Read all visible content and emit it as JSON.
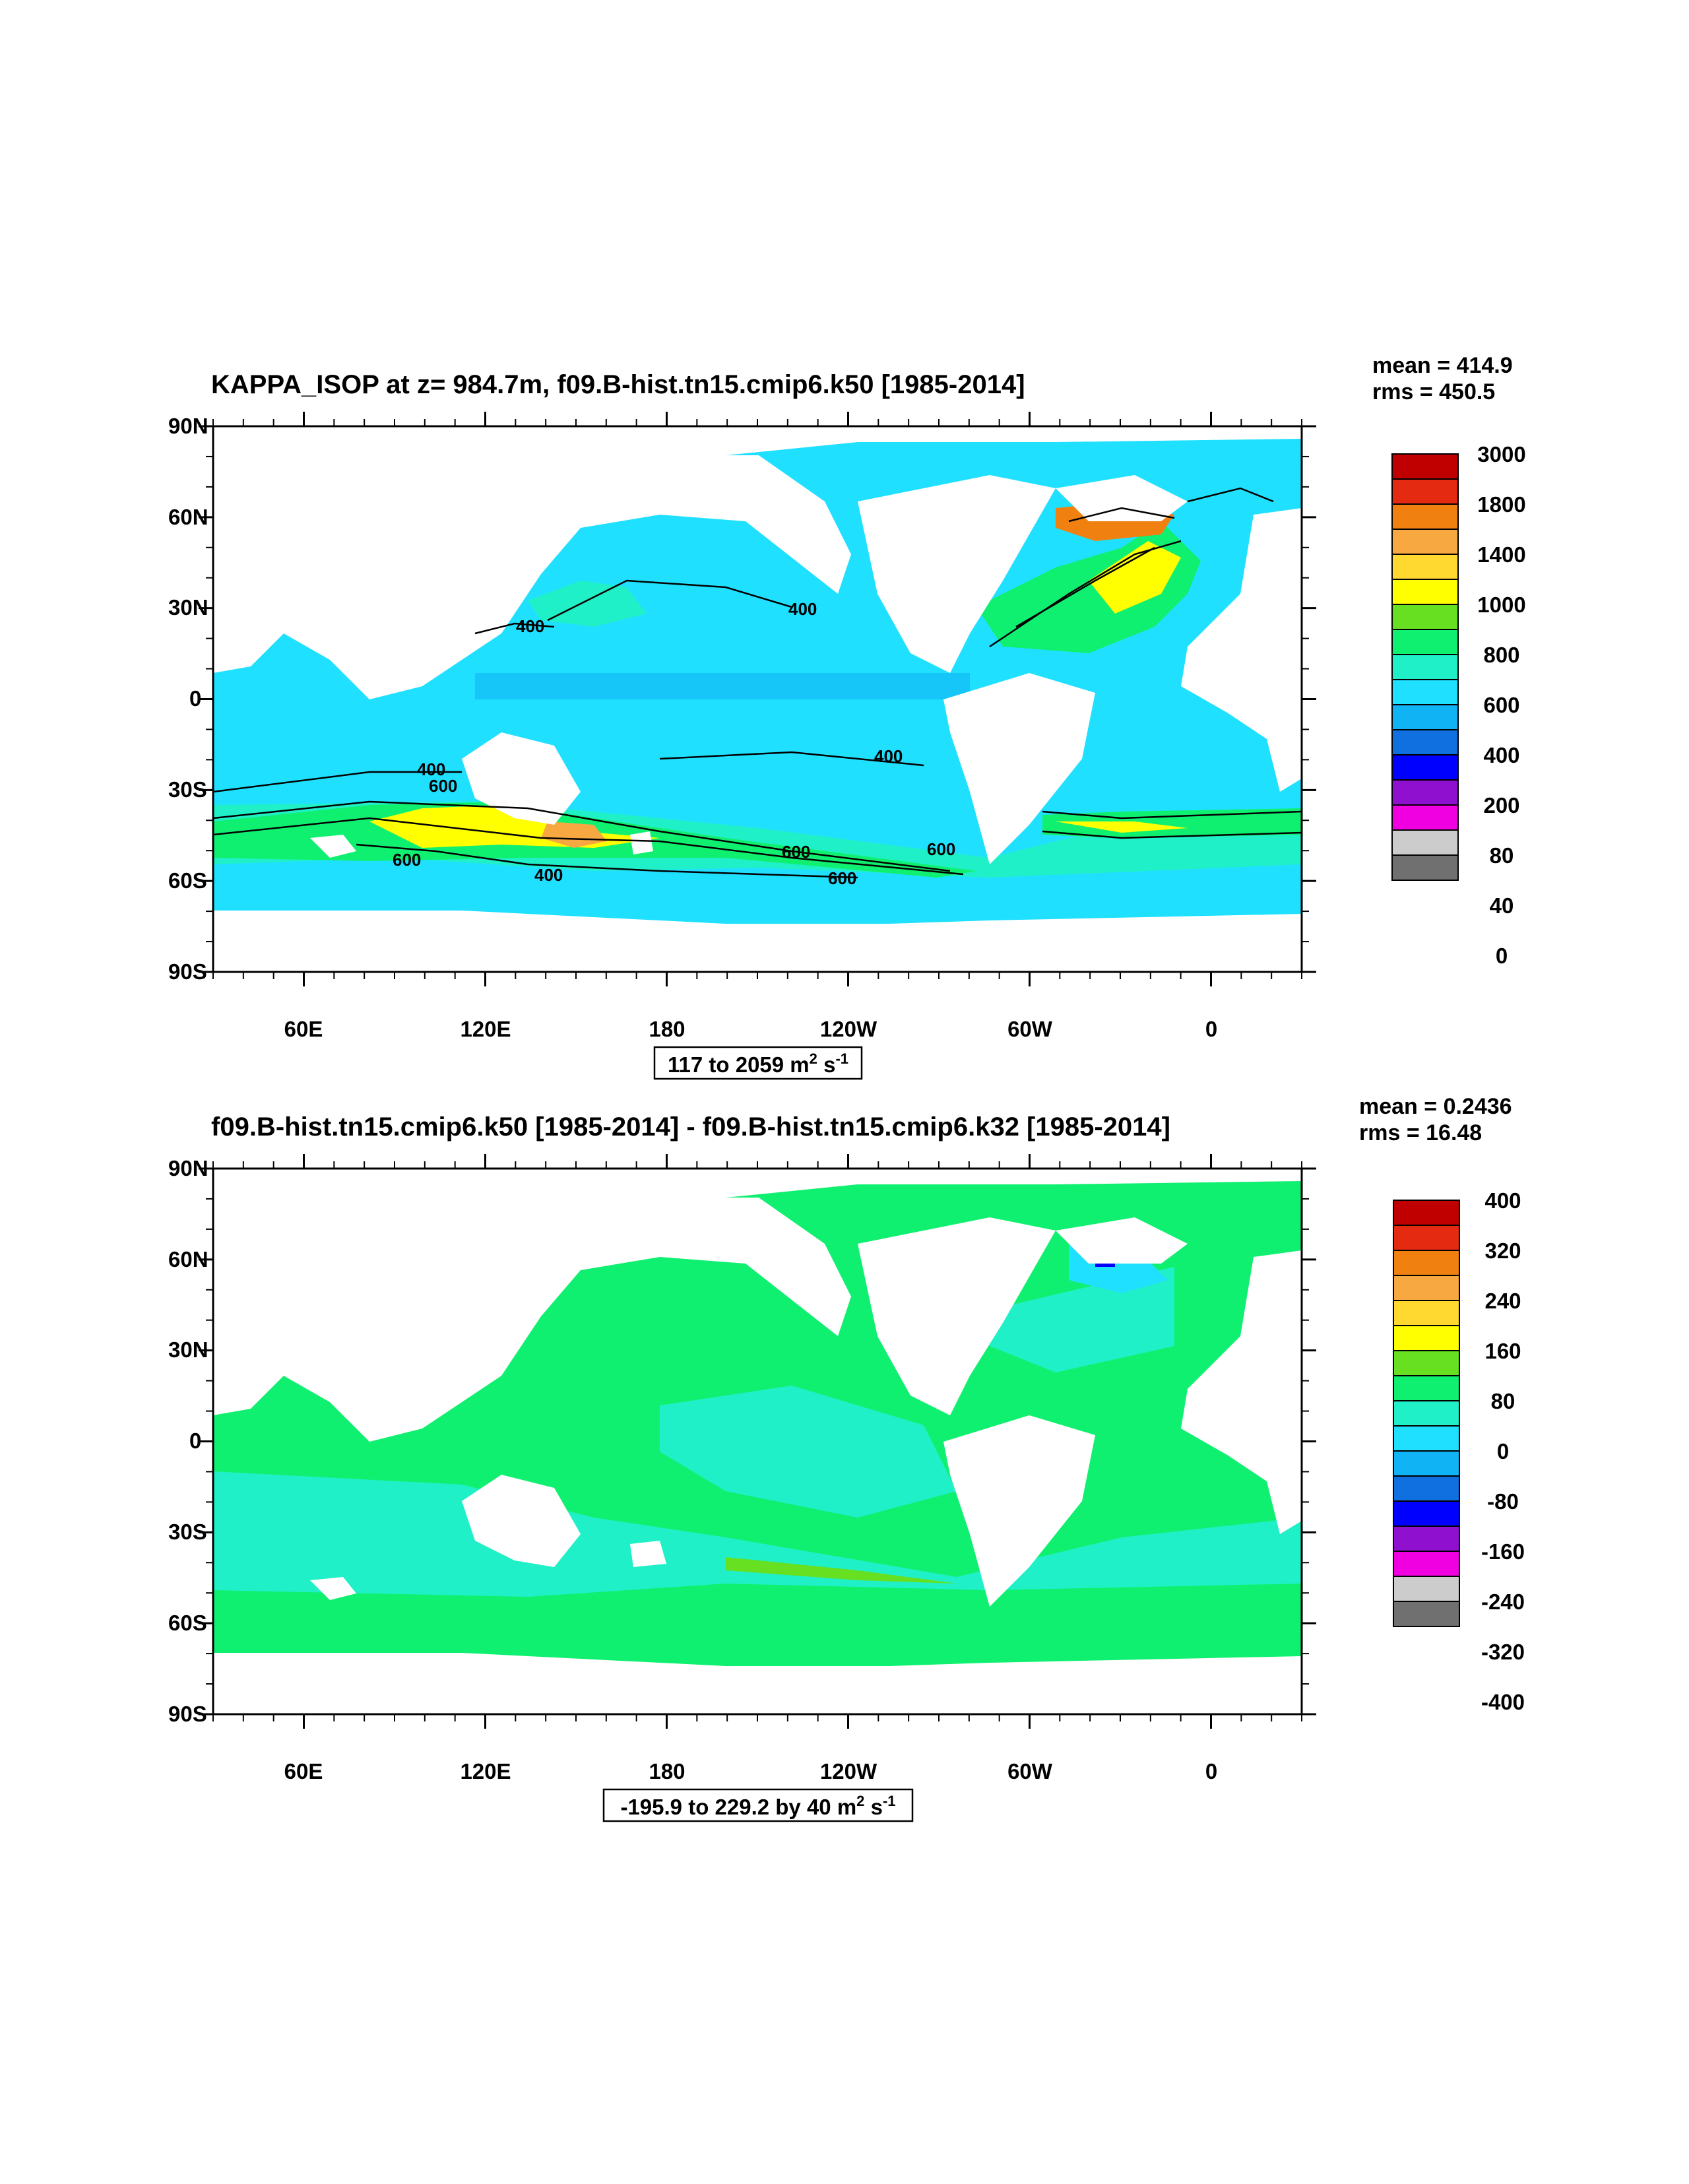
{
  "chart_data": [
    {
      "type": "heatmap",
      "title": "KAPPA_ISOP at z= 984.7m, f09.B-hist.tn15.cmip6.k50 [1985-2014]",
      "stats": {
        "mean": "mean = 414.9",
        "rms": "rms = 450.5"
      },
      "range_label": {
        "text": "117 to 2059 m",
        "sup1": "2",
        "mid": " s",
        "sup2": "-1"
      },
      "y_ticks": [
        "90N",
        "60N",
        "30N",
        "0",
        "30S",
        "60S",
        "90S"
      ],
      "x_ticks": [
        "60E",
        "120E",
        "180",
        "120W",
        "60W",
        "0"
      ],
      "colorbar": {
        "labels": [
          "3000",
          "1800",
          "1400",
          "1000",
          "800",
          "600",
          "400",
          "200",
          "80",
          "40",
          "0"
        ],
        "colors": [
          "#c00000",
          "#e42a10",
          "#f08010",
          "#f8a840",
          "#ffd830",
          "#ffff00",
          "#66e020",
          "#10f070",
          "#20f0c8",
          "#20e0ff",
          "#10b4f4",
          "#1070e0",
          "#0000ff",
          "#9010d0",
          "#f000e0",
          "#cccccc",
          "#707070"
        ]
      },
      "contour_labels": [
        "400",
        "400",
        "400",
        "400",
        "600",
        "600",
        "600",
        "600",
        "400",
        "600"
      ]
    },
    {
      "type": "heatmap",
      "title": "f09.B-hist.tn15.cmip6.k50 [1985-2014] - f09.B-hist.tn15.cmip6.k32 [1985-2014]",
      "stats": {
        "mean": "mean = 0.2436",
        "rms": "rms = 16.48"
      },
      "range_label": {
        "text": "-195.9 to 229.2 by 40 m",
        "sup1": "2",
        "mid": " s",
        "sup2": "-1"
      },
      "y_ticks": [
        "90N",
        "60N",
        "30N",
        "0",
        "30S",
        "60S",
        "90S"
      ],
      "x_ticks": [
        "60E",
        "120E",
        "180",
        "120W",
        "60W",
        "0"
      ],
      "colorbar": {
        "labels": [
          "400",
          "320",
          "240",
          "160",
          "80",
          "0",
          "-80",
          "-160",
          "-240",
          "-320",
          "-400"
        ],
        "colors": [
          "#c00000",
          "#e42a10",
          "#f08010",
          "#f8a840",
          "#ffd830",
          "#ffff00",
          "#66e020",
          "#10f070",
          "#20f0c8",
          "#20e0ff",
          "#10b4f4",
          "#1070e0",
          "#0000ff",
          "#9010d0",
          "#f000e0",
          "#cccccc",
          "#707070"
        ]
      }
    }
  ]
}
